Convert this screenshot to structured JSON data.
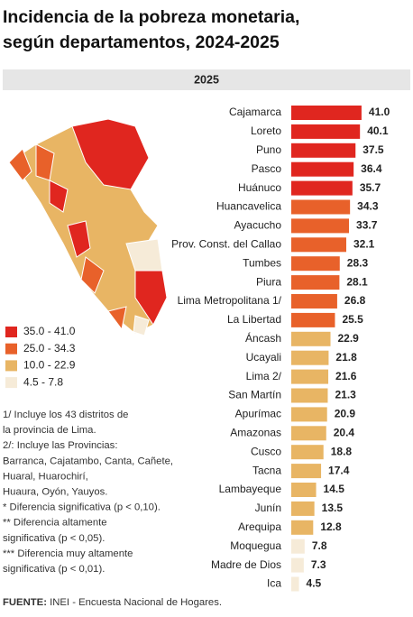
{
  "chart_data": {
    "type": "bar",
    "orientation": "horizontal",
    "title_lines": [
      "Incidencia de la pobreza monetaria,",
      "según departamentos, 2024-2025"
    ],
    "subtitle": "2025",
    "categories": [
      "Cajamarca",
      "Loreto",
      "Puno",
      "Pasco",
      "Huánuco",
      "Huancavelica",
      "Ayacucho",
      "Prov. Const. del Callao",
      "Tumbes",
      "Piura",
      "Lima Metropolitana 1/",
      "La Libertad",
      "Áncash",
      "Ucayali",
      "Lima 2/",
      "San Martín",
      "Apurímac",
      "Amazonas",
      "Cusco",
      "Tacna",
      "Lambayeque",
      "Junín",
      "Arequipa",
      "Moquegua",
      "Madre de Dios",
      "Ica"
    ],
    "values": [
      41.0,
      40.1,
      37.5,
      36.4,
      35.7,
      34.3,
      33.7,
      32.1,
      28.3,
      28.1,
      26.8,
      25.5,
      22.9,
      21.8,
      21.6,
      21.3,
      20.9,
      20.4,
      18.8,
      17.4,
      14.5,
      13.5,
      12.8,
      7.8,
      7.3,
      4.5
    ],
    "value_labels": [
      "41.0",
      "40.1",
      "37.5",
      "36.4",
      "35.7",
      "34.3",
      "33.7",
      "32.1",
      "28.3",
      "28.1",
      "26.8",
      "25.5",
      "22.9",
      "21.8",
      "21.6",
      "21.3",
      "20.9",
      "20.4",
      "18.8",
      "17.4",
      "14.5",
      "13.5",
      "12.8",
      "7.8",
      "7.3",
      "4.5"
    ],
    "colors": [
      "#e0261f",
      "#e0261f",
      "#e0261f",
      "#e0261f",
      "#e0261f",
      "#e8612a",
      "#e8612a",
      "#e8612a",
      "#e8612a",
      "#e8612a",
      "#e8612a",
      "#e8612a",
      "#e8b564",
      "#e8b564",
      "#e8b564",
      "#e8b564",
      "#e8b564",
      "#e8b564",
      "#e8b564",
      "#e8b564",
      "#e8b564",
      "#e8b564",
      "#e8b564",
      "#f6ebd8",
      "#f6ebd8",
      "#f6ebd8"
    ],
    "legend": [
      {
        "label": "35.0 - 41.0",
        "color": "#e0261f"
      },
      {
        "label": "25.0 - 34.3",
        "color": "#e8612a"
      },
      {
        "label": "10.0 - 22.9",
        "color": "#e8b564"
      },
      {
        "label": "4.5 - 7.8",
        "color": "#f6ebd8"
      }
    ],
    "notes": [
      "1/ Incluye los 43 distritos de",
      "la provincia de Lima.",
      "2/: Incluye las Provincias:",
      "Barranca, Cajatambo, Canta, Cañete,",
      " Huaral, Huarochirí,",
      "Huaura, Oyón, Yauyos.",
      "* Diferencia significativa (p < 0,10).",
      "** Diferencia altamente",
      "significativa (p < 0,05).",
      "*** Diferencia muy altamente",
      "significativa (p < 0,01)."
    ],
    "source_label": "FUENTE:",
    "source": "INEI - Encuesta Nacional de Hogares."
  }
}
